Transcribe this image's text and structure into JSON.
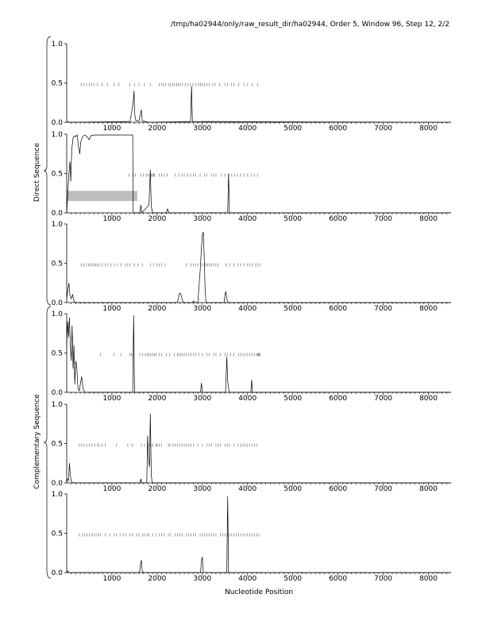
{
  "header": {
    "title": "/tmp/ha02944/only/raw_result_dir/ha02944, Order 5, Window 96, Step 12, 2/2"
  },
  "group_labels": {
    "direct": "Direct Sequence",
    "complementary": "Complementary Sequence"
  },
  "x_axis_label": "Nucleotide Position",
  "chart_data": [
    {
      "type": "line",
      "group": "direct",
      "xlim": [
        0,
        8500
      ],
      "ylim": [
        0,
        1
      ],
      "x_ticks": [
        1000,
        2000,
        3000,
        4000,
        5000,
        6000,
        7000,
        8000
      ],
      "y_ticks": [
        0.0,
        0.5,
        1.0
      ],
      "y_tick_labels": [
        "0.0",
        "0.5",
        "1.0"
      ],
      "profile": [
        [
          0,
          0.005
        ],
        [
          100,
          0.0
        ],
        [
          1400,
          0.01
        ],
        [
          1450,
          0.18
        ],
        [
          1470,
          0.25
        ],
        [
          1490,
          0.4
        ],
        [
          1500,
          0.12
        ],
        [
          1530,
          0.02
        ],
        [
          1600,
          0.02
        ],
        [
          1650,
          0.16
        ],
        [
          1670,
          0.02
        ],
        [
          1800,
          0.0
        ],
        [
          2740,
          0.01
        ],
        [
          2760,
          0.46
        ],
        [
          2780,
          0.01
        ],
        [
          8500,
          0.0
        ]
      ],
      "ticks_y": 0.48,
      "tick_positions": [
        320,
        380,
        440,
        500,
        550,
        600,
        680,
        780,
        900,
        1050,
        1150,
        1400,
        1500,
        1600,
        1720,
        1850,
        2050,
        2100,
        2140,
        2190,
        2250,
        2290,
        2340,
        2380,
        2430,
        2470,
        2510,
        2560,
        2620,
        2680,
        2730,
        2790,
        2860,
        2920,
        2960,
        3000,
        3050,
        3100,
        3150,
        3230,
        3280,
        3380,
        3500,
        3560,
        3640,
        3700,
        3800,
        3920,
        4000,
        4100,
        4220
      ]
    },
    {
      "type": "line",
      "group": "direct",
      "xlim": [
        0,
        8500
      ],
      "ylim": [
        0,
        1
      ],
      "x_ticks": [
        1000,
        2000,
        3000,
        4000,
        5000,
        6000,
        7000,
        8000
      ],
      "y_ticks": [
        0.0,
        0.5,
        1.0
      ],
      "y_tick_labels": [
        "0.0",
        "0.5",
        "1.0"
      ],
      "profile": [
        [
          0,
          0.0
        ],
        [
          20,
          0.2
        ],
        [
          50,
          0.5
        ],
        [
          70,
          0.65
        ],
        [
          90,
          0.4
        ],
        [
          110,
          0.8
        ],
        [
          140,
          0.95
        ],
        [
          170,
          0.98
        ],
        [
          200,
          0.97
        ],
        [
          230,
          0.99
        ],
        [
          260,
          0.85
        ],
        [
          290,
          0.75
        ],
        [
          310,
          0.9
        ],
        [
          350,
          0.97
        ],
        [
          400,
          0.99
        ],
        [
          450,
          0.97
        ],
        [
          500,
          0.93
        ],
        [
          530,
          0.98
        ],
        [
          600,
          0.99
        ],
        [
          1000,
          0.99
        ],
        [
          1460,
          0.99
        ],
        [
          1470,
          0.0
        ],
        [
          1500,
          0.0
        ],
        [
          1620,
          0.0
        ],
        [
          1640,
          0.1
        ],
        [
          1660,
          0.0
        ],
        [
          1820,
          0.1
        ],
        [
          1850,
          0.55
        ],
        [
          1870,
          0.08
        ],
        [
          1900,
          0.0
        ],
        [
          2200,
          0.0
        ],
        [
          2230,
          0.05
        ],
        [
          2260,
          0.0
        ],
        [
          3560,
          0.0
        ],
        [
          3580,
          0.5
        ],
        [
          3600,
          0.0
        ],
        [
          8500,
          0.0
        ]
      ],
      "ticks_y": 0.48,
      "tick_positions": [
        1380,
        1470,
        1520,
        1640,
        1700,
        1760,
        1800,
        1840,
        1870,
        1900,
        1920,
        1940,
        2050,
        2100,
        2150,
        2220,
        2400,
        2480,
        2550,
        2600,
        2680,
        2740,
        2800,
        2850,
        2950,
        3050,
        3100,
        3200,
        3250,
        3300,
        3420,
        3500,
        3580,
        3650,
        3720,
        3780,
        3850,
        3920,
        4000,
        4080,
        4150,
        4220
      ],
      "highlight": {
        "x_start": 0,
        "x_end": 1560,
        "y_low": 0.15,
        "y_high": 0.28,
        "color": "#bdbdbd"
      }
    },
    {
      "type": "line",
      "group": "direct",
      "xlim": [
        0,
        8500
      ],
      "ylim": [
        0,
        1
      ],
      "x_ticks": [
        1000,
        2000,
        3000,
        4000,
        5000,
        6000,
        7000,
        8000
      ],
      "y_ticks": [
        0.0,
        0.5,
        1.0
      ],
      "y_tick_labels": [
        "0.0",
        "0.5",
        "1.0"
      ],
      "profile": [
        [
          0,
          0.05
        ],
        [
          30,
          0.18
        ],
        [
          50,
          0.25
        ],
        [
          70,
          0.1
        ],
        [
          100,
          0.05
        ],
        [
          130,
          0.1
        ],
        [
          160,
          0.02
        ],
        [
          200,
          0.0
        ],
        [
          2450,
          0.0
        ],
        [
          2480,
          0.08
        ],
        [
          2500,
          0.12
        ],
        [
          2530,
          0.1
        ],
        [
          2560,
          0.02
        ],
        [
          2600,
          0.0
        ],
        [
          2780,
          0.0
        ],
        [
          2800,
          0.02
        ],
        [
          2850,
          0.0
        ],
        [
          2900,
          0.0
        ],
        [
          2950,
          0.4
        ],
        [
          2980,
          0.7
        ],
        [
          3000,
          0.85
        ],
        [
          3020,
          0.9
        ],
        [
          3040,
          0.6
        ],
        [
          3060,
          0.2
        ],
        [
          3080,
          0.0
        ],
        [
          3480,
          0.0
        ],
        [
          3500,
          0.1
        ],
        [
          3520,
          0.14
        ],
        [
          3540,
          0.05
        ],
        [
          3560,
          0.0
        ],
        [
          8500,
          0.0
        ]
      ],
      "ticks_y": 0.48,
      "tick_positions": [
        320,
        380,
        430,
        480,
        520,
        560,
        600,
        640,
        680,
        720,
        780,
        850,
        900,
        980,
        1050,
        1120,
        1200,
        1300,
        1350,
        1400,
        1500,
        1580,
        1680,
        1850,
        1920,
        2000,
        2050,
        2100,
        2180,
        2650,
        2750,
        2800,
        2850,
        2900,
        3000,
        3050,
        3080,
        3120,
        3160,
        3200,
        3250,
        3300,
        3350,
        3520,
        3600,
        3700,
        3780,
        3850,
        3920,
        4000,
        4050,
        4100,
        4180,
        4230,
        4280
      ]
    },
    {
      "type": "line",
      "group": "complementary",
      "xlim": [
        0,
        8500
      ],
      "ylim": [
        0,
        1
      ],
      "x_ticks": [
        1000,
        2000,
        3000,
        4000,
        5000,
        6000,
        7000,
        8000
      ],
      "y_ticks": [
        0.0,
        0.5,
        1.0
      ],
      "y_tick_labels": [
        "0.0",
        "0.5",
        "1.0"
      ],
      "profile": [
        [
          0,
          0.6
        ],
        [
          20,
          0.9
        ],
        [
          40,
          0.7
        ],
        [
          60,
          0.95
        ],
        [
          80,
          0.6
        ],
        [
          100,
          0.4
        ],
        [
          120,
          0.85
        ],
        [
          140,
          0.3
        ],
        [
          160,
          0.6
        ],
        [
          180,
          0.1
        ],
        [
          200,
          0.4
        ],
        [
          220,
          0.35
        ],
        [
          250,
          0.05
        ],
        [
          280,
          0.02
        ],
        [
          300,
          0.1
        ],
        [
          330,
          0.2
        ],
        [
          360,
          0.05
        ],
        [
          400,
          0.0
        ],
        [
          500,
          0.0
        ],
        [
          1460,
          0.0
        ],
        [
          1480,
          0.98
        ],
        [
          1500,
          0.0
        ],
        [
          2960,
          0.0
        ],
        [
          2980,
          0.12
        ],
        [
          3000,
          0.0
        ],
        [
          3510,
          0.0
        ],
        [
          3520,
          0.1
        ],
        [
          3540,
          0.45
        ],
        [
          3560,
          0.15
        ],
        [
          3580,
          0.05
        ],
        [
          3600,
          0.0
        ],
        [
          4070,
          0.0
        ],
        [
          4090,
          0.16
        ],
        [
          4110,
          0.0
        ],
        [
          8500,
          0.0
        ]
      ],
      "ticks_y": 0.48,
      "tick_positions": [
        750,
        1050,
        1200,
        1400,
        1430,
        1470,
        1620,
        1680,
        1740,
        1780,
        1820,
        1860,
        1900,
        1940,
        1980,
        2050,
        2100,
        2200,
        2280,
        2380,
        2450,
        2480,
        2520,
        2560,
        2600,
        2640,
        2700,
        2750,
        2800,
        2850,
        2920,
        3000,
        3100,
        3150,
        3250,
        3300,
        3400,
        3500,
        3550,
        3620,
        3700,
        3800,
        3850,
        3900,
        3950,
        4000,
        4050,
        4100,
        4150,
        4200,
        4220,
        4240,
        4260,
        4280
      ]
    },
    {
      "type": "line",
      "group": "complementary",
      "xlim": [
        0,
        8500
      ],
      "ylim": [
        0,
        1
      ],
      "x_ticks": [
        1000,
        2000,
        3000,
        4000,
        5000,
        6000,
        7000,
        8000
      ],
      "y_ticks": [
        0.0,
        0.5,
        1.0
      ],
      "y_tick_labels": [
        "0.0",
        "0.5",
        "1.0"
      ],
      "profile": [
        [
          0,
          0.0
        ],
        [
          20,
          0.05
        ],
        [
          40,
          0.03
        ],
        [
          60,
          0.25
        ],
        [
          80,
          0.1
        ],
        [
          100,
          0.02
        ],
        [
          140,
          0.0
        ],
        [
          1620,
          0.0
        ],
        [
          1640,
          0.05
        ],
        [
          1660,
          0.0
        ],
        [
          1770,
          0.0
        ],
        [
          1790,
          0.6
        ],
        [
          1810,
          0.3
        ],
        [
          1830,
          0.2
        ],
        [
          1850,
          0.88
        ],
        [
          1870,
          0.1
        ],
        [
          1890,
          0.0
        ],
        [
          8500,
          0.0
        ]
      ],
      "ticks_y": 0.48,
      "tick_positions": [
        280,
        330,
        380,
        440,
        500,
        560,
        620,
        680,
        720,
        780,
        850,
        1100,
        1350,
        1450,
        1650,
        1720,
        1800,
        1850,
        1900,
        1980,
        2000,
        2050,
        2100,
        2250,
        2280,
        2350,
        2400,
        2450,
        2500,
        2550,
        2600,
        2650,
        2700,
        2750,
        2800,
        2900,
        3000,
        3100,
        3150,
        3200,
        3300,
        3350,
        3400,
        3500,
        3550,
        3600,
        3700,
        3780,
        3850,
        3900,
        3950,
        4000,
        4050,
        4100,
        4150,
        4200
      ]
    },
    {
      "type": "line",
      "group": "complementary",
      "xlim": [
        0,
        8500
      ],
      "ylim": [
        0,
        1
      ],
      "x_ticks": [
        1000,
        2000,
        3000,
        4000,
        5000,
        6000,
        7000,
        8000
      ],
      "y_ticks": [
        0.0,
        0.5,
        1.0
      ],
      "y_tick_labels": [
        "0.0",
        "0.5",
        "1.0"
      ],
      "profile": [
        [
          0,
          0.0
        ],
        [
          20,
          0.02
        ],
        [
          50,
          0.0
        ],
        [
          1610,
          0.0
        ],
        [
          1630,
          0.1
        ],
        [
          1650,
          0.16
        ],
        [
          1670,
          0.02
        ],
        [
          1700,
          0.0
        ],
        [
          2960,
          0.0
        ],
        [
          2980,
          0.15
        ],
        [
          3000,
          0.2
        ],
        [
          3020,
          0.0
        ],
        [
          3540,
          0.0
        ],
        [
          3560,
          0.97
        ],
        [
          3580,
          0.0
        ],
        [
          8500,
          0.0
        ]
      ],
      "ticks_y": 0.48,
      "tick_positions": [
        280,
        350,
        400,
        450,
        500,
        560,
        600,
        650,
        700,
        750,
        850,
        950,
        1050,
        1100,
        1180,
        1250,
        1300,
        1400,
        1450,
        1550,
        1600,
        1680,
        1720,
        1780,
        1820,
        1900,
        1980,
        2050,
        2100,
        2150,
        2250,
        2300,
        2400,
        2450,
        2500,
        2550,
        2650,
        2700,
        2750,
        2800,
        2850,
        2950,
        3000,
        3050,
        3100,
        3150,
        3200,
        3250,
        3300,
        3400,
        3450,
        3500,
        3560,
        3600,
        3650,
        3700,
        3750,
        3800,
        3850,
        3900,
        3950,
        4000,
        4050,
        4100,
        4150,
        4200,
        4250
      ]
    }
  ]
}
